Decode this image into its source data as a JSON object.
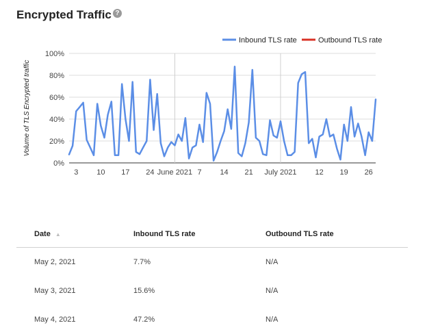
{
  "header": {
    "title": "Encrypted Traffic",
    "help_icon": "question-circle-icon"
  },
  "chart_data": {
    "type": "line",
    "ylabel": "Volume of TLS Encrypted traffic",
    "ylim": [
      0,
      100
    ],
    "yticks": [
      "0%",
      "20%",
      "40%",
      "60%",
      "80%",
      "100%"
    ],
    "ytick_values": [
      0,
      20,
      40,
      60,
      80,
      100
    ],
    "xticks": [
      {
        "label": "3",
        "day": 2
      },
      {
        "label": "10",
        "day": 9
      },
      {
        "label": "17",
        "day": 16
      },
      {
        "label": "24",
        "day": 23
      },
      {
        "label": "June 2021",
        "day": 30
      },
      {
        "label": "7",
        "day": 37
      },
      {
        "label": "14",
        "day": 44
      },
      {
        "label": "21",
        "day": 51
      },
      {
        "label": "July 2021",
        "day": 60
      },
      {
        "label": "12",
        "day": 71
      },
      {
        "label": "19",
        "day": 78
      },
      {
        "label": "26",
        "day": 85
      }
    ],
    "month_boundaries": [
      30,
      60
    ],
    "x_start": "May 2, 2021",
    "x_end": "July 28, 2021",
    "legend_position": "top-right",
    "grid": true,
    "series": [
      {
        "name": "Inbound TLS rate",
        "color": "#5b8ee6",
        "values": [
          7.7,
          15.6,
          47.2,
          51,
          55,
          21,
          14,
          7,
          54,
          34,
          23,
          44,
          56,
          7,
          7,
          72,
          40,
          20,
          74,
          10,
          8,
          14,
          20,
          76,
          30,
          63,
          18,
          6,
          14,
          19,
          16,
          26,
          20,
          41,
          4,
          14,
          16,
          35,
          19,
          64,
          54,
          2,
          10,
          20,
          29,
          49,
          31,
          88,
          9,
          6,
          18,
          37,
          85,
          23,
          20,
          8,
          7,
          39,
          25,
          23,
          38,
          20,
          7,
          7,
          10,
          73,
          81,
          83,
          18,
          22,
          5,
          24,
          26,
          40,
          24,
          26,
          13,
          3,
          35,
          20,
          51,
          24,
          36,
          24,
          7,
          28,
          20,
          58
        ]
      },
      {
        "name": "Outbound TLS rate",
        "color": "#d93025",
        "values": []
      }
    ]
  },
  "table": {
    "headers": [
      "Date",
      "Inbound TLS rate",
      "Outbound TLS rate"
    ],
    "sort_icon": "sort-up-icon",
    "rows": [
      [
        "May 2, 2021",
        "7.7%",
        "N/A"
      ],
      [
        "May 3, 2021",
        "15.6%",
        "N/A"
      ],
      [
        "May 4, 2021",
        "47.2%",
        "N/A"
      ]
    ]
  }
}
